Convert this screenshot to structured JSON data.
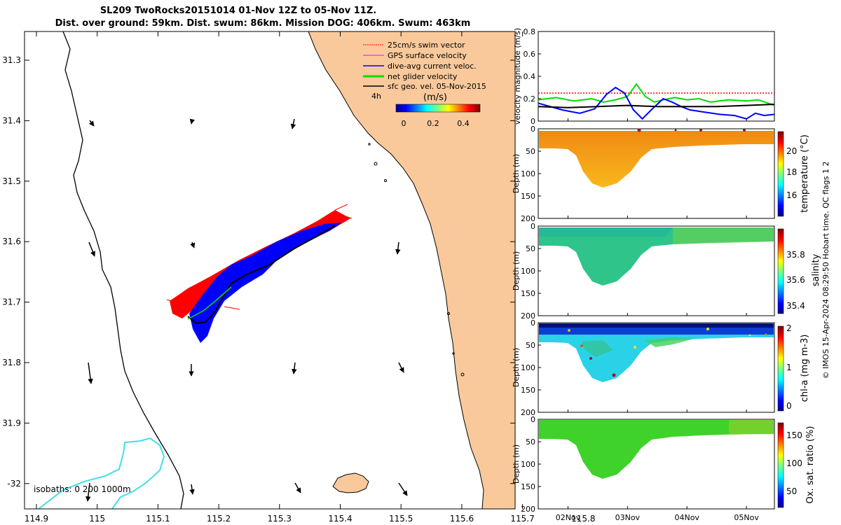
{
  "header": {
    "title": "SL209 TwoRocks20151014 01-Nov 12Z to 05-Nov 11Z.",
    "subtitle": "Dist. over ground: 59km. Dist. swum: 86km. Mission DOG: 406km. Swum: 463km"
  },
  "colors": {
    "land": "#f9c99b",
    "track_red": "#ff0000",
    "track_blue": "#0000ff",
    "track_green": "#00e000",
    "isobath": "#40e0e8",
    "gps": "#ff00ff"
  },
  "map": {
    "legend": [
      {
        "label": "25cm/s swim vector",
        "color": "#ff0000"
      },
      {
        "label": "GPS surface velocity",
        "color": "#ff00ff"
      },
      {
        "label": "dive-avg current veloc.",
        "color": "#0000ff"
      },
      {
        "label": "net glider velocity",
        "color": "#00e000"
      },
      {
        "label": "sfc geo. vel. 05-Nov-2015",
        "color": "#000000"
      }
    ],
    "scale_label": "4h",
    "colorbar_unit": "(m/s)",
    "colorbar_ticks": [
      "0",
      "0.2",
      "0.4"
    ],
    "isobath_note": "isobaths: 0   200  1000m",
    "xticks": [
      "114.9",
      "115",
      "115.1",
      "115.2",
      "115.3",
      "115.4",
      "115.5",
      "115.6",
      "115.7",
      "115.8"
    ],
    "yticks": [
      "31.3",
      "31.4",
      "31.5",
      "31.6",
      "31.7",
      "31.8",
      "31.9",
      "-32"
    ]
  },
  "chart_data": [
    {
      "type": "line",
      "name": "velocity magnitude",
      "ylabel": "velocity magnitude (m/s)",
      "ylim": [
        0,
        0.8
      ],
      "yticks": [
        "0",
        "0.2",
        "0.4",
        "0.6",
        "0.8"
      ],
      "xlim_day": [
        1.5,
        5.47
      ],
      "series": [
        {
          "color": "#ff0000",
          "style": "dotted",
          "x": [
            1.5,
            5.47
          ],
          "y": [
            0.25,
            0.25
          ]
        },
        {
          "color": "#00dd00",
          "x": [
            1.5,
            1.8,
            2.1,
            2.4,
            2.6,
            2.8,
            3.0,
            3.15,
            3.3,
            3.45,
            3.6,
            3.8,
            4.0,
            4.2,
            4.4,
            4.7,
            5.0,
            5.2,
            5.47
          ],
          "y": [
            0.19,
            0.21,
            0.18,
            0.2,
            0.17,
            0.19,
            0.22,
            0.33,
            0.22,
            0.17,
            0.19,
            0.21,
            0.19,
            0.2,
            0.17,
            0.19,
            0.18,
            0.19,
            0.14
          ]
        },
        {
          "color": "#0000ff",
          "x": [
            1.5,
            1.9,
            2.2,
            2.45,
            2.65,
            2.8,
            2.95,
            3.1,
            3.25,
            3.4,
            3.6,
            3.75,
            3.9,
            4.05,
            4.3,
            4.55,
            4.8,
            5.0,
            5.15,
            5.3,
            5.47
          ],
          "y": [
            0.16,
            0.1,
            0.07,
            0.11,
            0.24,
            0.3,
            0.25,
            0.1,
            0.02,
            0.1,
            0.2,
            0.17,
            0.13,
            0.1,
            0.08,
            0.06,
            0.05,
            0.02,
            0.07,
            0.05,
            0.06
          ]
        },
        {
          "color": "#000000",
          "x": [
            1.5,
            2.0,
            2.5,
            3.0,
            3.5,
            4.0,
            4.5,
            5.0,
            5.47
          ],
          "y": [
            0.13,
            0.12,
            0.13,
            0.14,
            0.13,
            0.13,
            0.13,
            0.14,
            0.15
          ]
        }
      ]
    },
    {
      "type": "heatmap",
      "name": "temperature",
      "cbar_label": "temperature (°C)",
      "ylabel": "Depth (m)",
      "yticks": [
        "0",
        "50",
        "100",
        "150",
        "200"
      ],
      "cbar_ticks": [
        "16",
        "18",
        "20"
      ],
      "clim": [
        14,
        22
      ],
      "surface_value": 21.0,
      "trough_value": 19.5
    },
    {
      "type": "heatmap",
      "name": "salinity",
      "cbar_label": "salinity",
      "ylabel": "Depth (m)",
      "yticks": [
        "0",
        "50",
        "100",
        "150",
        "200"
      ],
      "cbar_ticks": [
        "35.4",
        "35.6",
        "35.8"
      ],
      "clim": [
        35.3,
        35.95
      ],
      "surface_value": 35.62,
      "trough_value": 35.58
    },
    {
      "type": "heatmap",
      "name": "chl-a",
      "cbar_label": "chl-a (mg m-3)",
      "ylabel": "Depth (m)",
      "yticks": [
        "0",
        "50",
        "100",
        "150",
        "200"
      ],
      "cbar_ticks": [
        "0",
        "1",
        "2"
      ],
      "clim": [
        0,
        2
      ],
      "surface_value": 0.2,
      "trough_value": 0.7
    },
    {
      "type": "heatmap",
      "name": "oxygen",
      "cbar_label": "Ox. sat. ratio (%)",
      "ylabel": "Depth (m)",
      "yticks": [
        "0",
        "50",
        "100",
        "150",
        "200"
      ],
      "cbar_ticks": [
        "50",
        "100",
        "150"
      ],
      "clim": [
        25,
        175
      ],
      "surface_value": 100,
      "trough_value": 100,
      "xticks": [
        "02Nov",
        "03Nov",
        "04Nov",
        "05Nov"
      ]
    }
  ],
  "footer": {
    "credit": "© IMOS 15-Apr-2024 08:29:50 Hobart time. QC flags 1  2"
  }
}
